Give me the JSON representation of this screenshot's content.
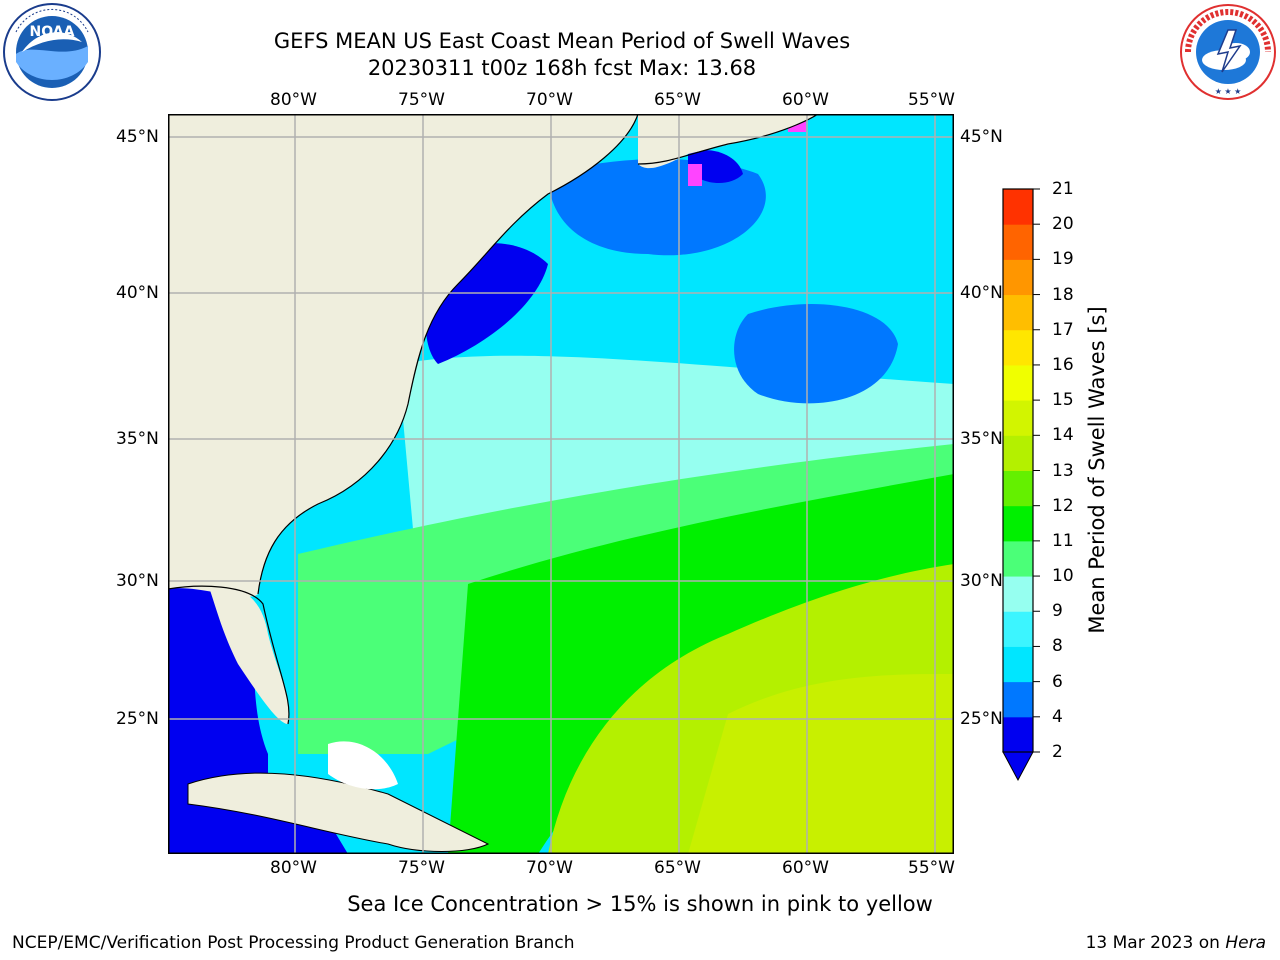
{
  "header": {
    "title_line1": "GEFS MEAN US East Coast Mean Period of Swell Waves",
    "title_line2": "20230311 t00z 168h fcst   Max: 13.68"
  },
  "logos": {
    "noaa_text": "NOAA",
    "noaa_ring_text": "NATIONAL OCEANIC AND ATMOSPHERIC ADMINISTRATION · U.S. DEPARTMENT OF COMMERCE",
    "nws_ring_text": "NATIONAL WEATHER SERVICE"
  },
  "map": {
    "lon_labels": [
      "80°W",
      "75°W",
      "70°W",
      "65°W",
      "60°W",
      "55°W"
    ],
    "lat_labels": [
      "45°N",
      "40°N",
      "35°N",
      "30°N",
      "25°N"
    ],
    "colors": {
      "land": "#efeedd",
      "ocean_deep": "#0000f0",
      "ice": "#ff44ff"
    }
  },
  "colorbar": {
    "label": "Mean Period of Swell Waves [s]",
    "ticks": [
      "2",
      "4",
      "6",
      "8",
      "9",
      "10",
      "11",
      "12",
      "13",
      "14",
      "15",
      "16",
      "17",
      "18",
      "19",
      "20",
      "21"
    ],
    "colors": [
      "#0000f0",
      "#0078ff",
      "#00e6ff",
      "#3cf5ff",
      "#96fff0",
      "#4bff78",
      "#00f000",
      "#64f000",
      "#b4f000",
      "#d2f500",
      "#f0ff00",
      "#ffe600",
      "#ffbe00",
      "#ff9600",
      "#ff6400",
      "#ff3200",
      "#f00000"
    ]
  },
  "footer": {
    "note": "Sea Ice Concentration > 15% is shown in pink to yellow",
    "credit": "NCEP/EMC/Verification Post Processing Product Generation Branch",
    "date": "13 Mar 2023 on",
    "host": "Hera"
  }
}
